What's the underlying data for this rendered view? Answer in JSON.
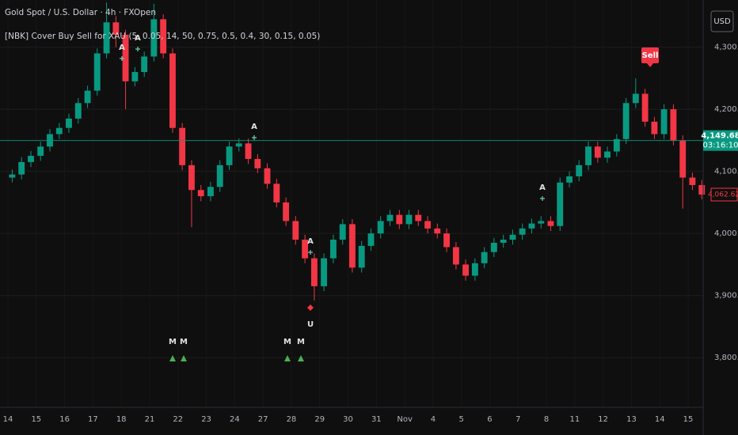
{
  "chart_data": {
    "type": "candlestick",
    "title": "Gold Spot / U.S. Dollar · 4h · FXOpen",
    "subtitle": "[NBK] Cover Buy Sell for XAU (5, 0.05, 14, 50, 0.75, 0.5, 0.4, 30, 0.15, 0.05)",
    "currency": "USD",
    "up_color": "#089981",
    "down_color": "#f23645",
    "grid": true,
    "x": [
      0.15,
      0.48,
      0.81,
      1.15,
      1.48,
      1.81,
      2.15,
      2.48,
      2.81,
      3.15,
      3.48,
      3.81,
      4.15,
      4.48,
      4.81,
      5.15,
      5.48,
      5.81,
      6.15,
      6.48,
      6.81,
      7.15,
      7.48,
      7.81,
      8.15,
      8.48,
      8.81,
      9.15,
      9.48,
      9.81,
      10.15,
      10.48,
      10.81,
      11.15,
      11.48,
      11.81,
      12.15,
      12.48,
      12.81,
      13.15,
      13.48,
      13.81,
      14.15,
      14.48,
      14.81,
      15.15,
      15.48,
      15.81,
      16.15,
      16.48,
      16.81,
      17.15,
      17.48,
      17.81,
      18.15,
      18.48,
      18.81,
      19.15,
      19.48,
      19.81,
      20.15,
      20.48,
      20.81,
      21.15,
      21.48,
      21.81,
      22.15,
      22.48,
      22.81,
      23.15,
      23.48,
      23.81,
      24.15,
      24.48
    ],
    "open": [
      4090,
      4095,
      4115,
      4125,
      4140,
      4160,
      4170,
      4185,
      4210,
      4230,
      4290,
      4340,
      4320,
      4245,
      4260,
      4285,
      4345,
      4290,
      4170,
      4110,
      4070,
      4060,
      4075,
      4110,
      4140,
      4145,
      4120,
      4105,
      4080,
      4050,
      4020,
      3990,
      3960,
      3915,
      3960,
      3990,
      4015,
      3945,
      3980,
      4000,
      4020,
      4030,
      4015,
      4030,
      4020,
      4008,
      4000,
      3978,
      3950,
      3932,
      3952,
      3970,
      3985,
      3990,
      3998,
      4008,
      4016,
      4020,
      4012,
      4082,
      4092,
      4110,
      4140,
      4122,
      4132,
      4152,
      4210,
      4225,
      4180,
      4160,
      4200,
      4150,
      4090,
      4078
    ],
    "high": [
      4103,
      4123,
      4133,
      4148,
      4168,
      4178,
      4193,
      4218,
      4238,
      4298,
      4372,
      4350,
      4328,
      4268,
      4293,
      4370,
      4353,
      4298,
      4178,
      4118,
      4078,
      4083,
      4118,
      4148,
      4153,
      4153,
      4128,
      4113,
      4088,
      4058,
      4028,
      3998,
      3968,
      3968,
      3998,
      4023,
      4023,
      3988,
      4008,
      4028,
      4038,
      4038,
      4038,
      4038,
      4028,
      4016,
      4008,
      3986,
      3958,
      3960,
      3978,
      3993,
      3998,
      4006,
      4016,
      4024,
      4028,
      4028,
      4090,
      4100,
      4118,
      4148,
      4148,
      4140,
      4160,
      4218,
      4250,
      4233,
      4188,
      4208,
      4208,
      4158,
      4098,
      4086
    ],
    "low": [
      4082,
      4087,
      4107,
      4117,
      4132,
      4152,
      4162,
      4177,
      4202,
      4222,
      4282,
      4300,
      4200,
      4237,
      4252,
      4277,
      4282,
      4162,
      4102,
      4010,
      4052,
      4052,
      4067,
      4102,
      4132,
      4112,
      4097,
      4072,
      4042,
      4012,
      3982,
      3952,
      3892,
      3907,
      3952,
      3982,
      3937,
      3937,
      3972,
      3992,
      4012,
      4007,
      4007,
      4012,
      4000,
      3992,
      3970,
      3942,
      3924,
      3924,
      3944,
      3962,
      3977,
      3982,
      3990,
      4000,
      4008,
      4004,
      4004,
      4074,
      4084,
      4102,
      4114,
      4114,
      4124,
      4144,
      4202,
      4172,
      4152,
      4152,
      4142,
      4040,
      4070,
      4055
    ],
    "close": [
      4095,
      4115,
      4125,
      4140,
      4160,
      4170,
      4185,
      4210,
      4230,
      4290,
      4340,
      4320,
      4245,
      4260,
      4285,
      4345,
      4290,
      4170,
      4110,
      4070,
      4060,
      4075,
      4110,
      4140,
      4145,
      4120,
      4105,
      4080,
      4050,
      4020,
      3990,
      3960,
      3915,
      3960,
      3990,
      4015,
      3945,
      3980,
      4000,
      4020,
      4030,
      4015,
      4030,
      4020,
      4008,
      4000,
      3978,
      3950,
      3932,
      3952,
      3970,
      3985,
      3990,
      3998,
      4008,
      4016,
      4020,
      4012,
      4082,
      4092,
      4110,
      4140,
      4122,
      4132,
      4152,
      4210,
      4225,
      4180,
      4160,
      4200,
      4150,
      4090,
      4078,
      4062.62
    ],
    "xlim": [
      -0.28,
      24.53
    ],
    "xticks": [
      {
        "value": 0,
        "label": "14"
      },
      {
        "value": 1,
        "label": "15"
      },
      {
        "value": 2,
        "label": "16"
      },
      {
        "value": 3,
        "label": "17"
      },
      {
        "value": 4,
        "label": "18"
      },
      {
        "value": 5,
        "label": "21"
      },
      {
        "value": 6,
        "label": "22"
      },
      {
        "value": 7,
        "label": "23"
      },
      {
        "value": 8,
        "label": "24"
      },
      {
        "value": 9,
        "label": "27"
      },
      {
        "value": 10,
        "label": "28"
      },
      {
        "value": 11,
        "label": "29"
      },
      {
        "value": 12,
        "label": "30"
      },
      {
        "value": 13,
        "label": "31"
      },
      {
        "value": 14,
        "label": "Nov"
      },
      {
        "value": 15,
        "label": "4"
      },
      {
        "value": 16,
        "label": "5"
      },
      {
        "value": 17,
        "label": "6"
      },
      {
        "value": 18,
        "label": "7"
      },
      {
        "value": 19,
        "label": "8"
      },
      {
        "value": 20,
        "label": "11"
      },
      {
        "value": 21,
        "label": "12"
      },
      {
        "value": 22,
        "label": "13"
      },
      {
        "value": 23,
        "label": "14"
      },
      {
        "value": 24,
        "label": "15"
      }
    ],
    "ylim": [
      3720,
      4376
    ],
    "yticks": [
      {
        "value": 3800,
        "label": "3,800.00"
      },
      {
        "value": 3900,
        "label": "3,900.00"
      },
      {
        "value": 4000,
        "label": "4,000.00"
      },
      {
        "value": 4100,
        "label": "4,100.00"
      },
      {
        "value": 4200,
        "label": "4,200.00"
      },
      {
        "value": 4300,
        "label": "4,300.00"
      }
    ],
    "last_price": {
      "value": 4149.68,
      "label": "4,149.68",
      "countdown": "03:16:10"
    },
    "close_price": {
      "value": 4062.62,
      "label": "4,062.62"
    },
    "annotations": [
      "Sell",
      "A",
      "A",
      "A",
      "A",
      "A",
      "M",
      "M",
      "M",
      "M",
      "U"
    ]
  }
}
